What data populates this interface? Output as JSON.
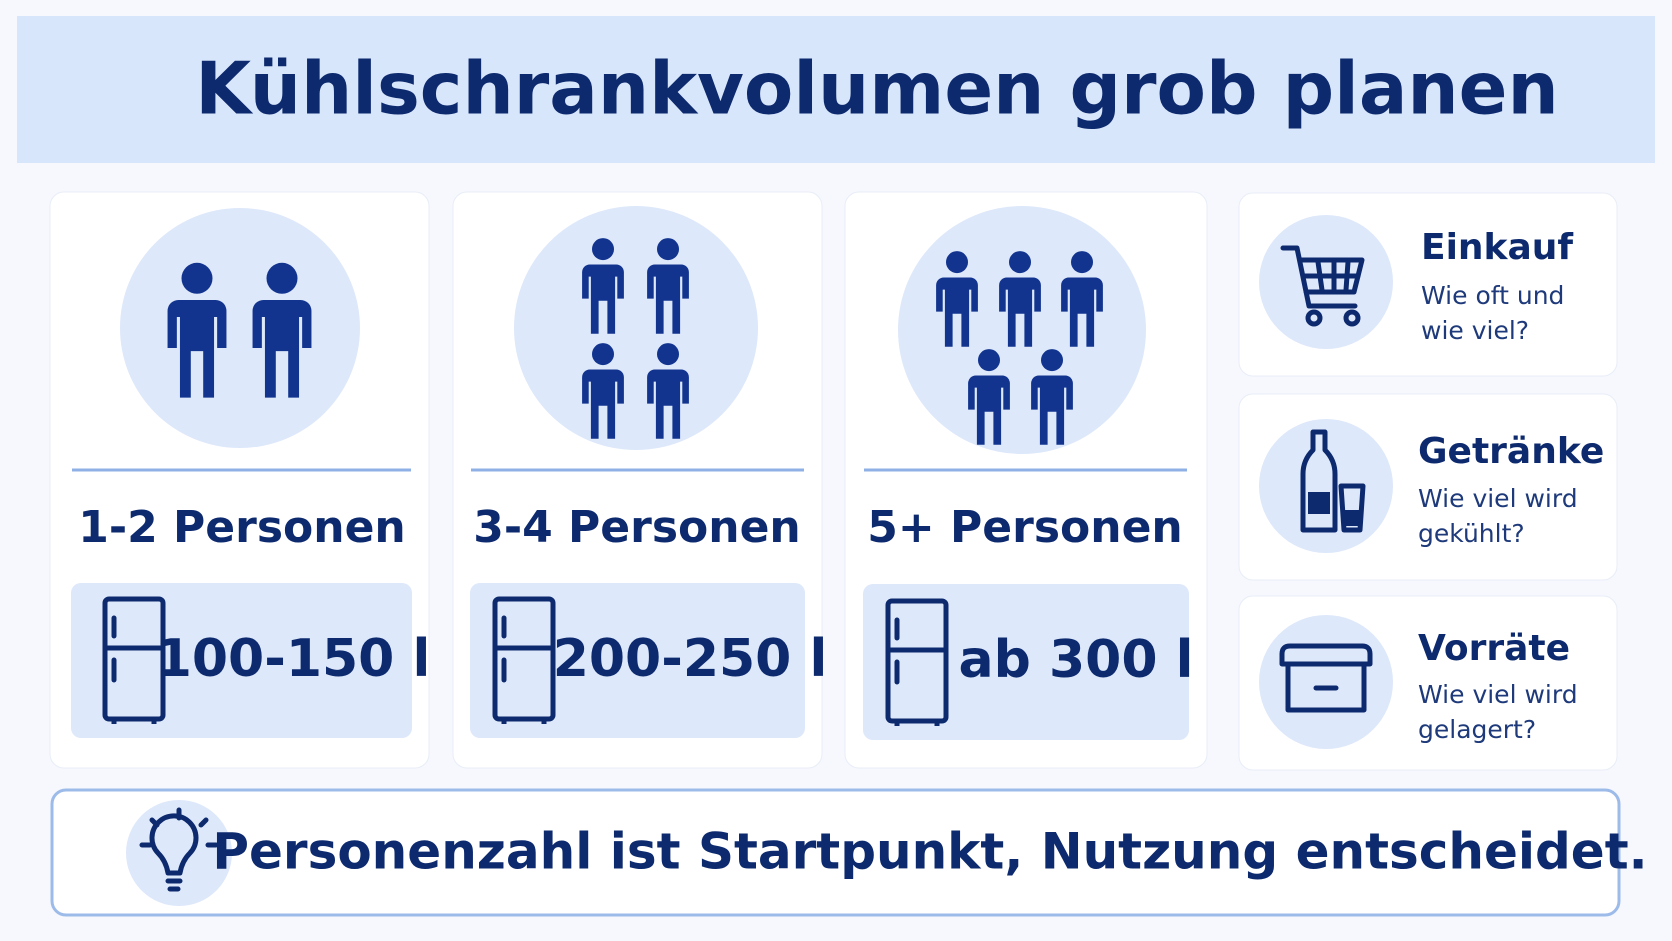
{
  "header": {
    "title": "Kühlschrankvolumen grob planen"
  },
  "cards": [
    {
      "label": "1-2 Personen",
      "volume": "100-150 l"
    },
    {
      "label": "3-4 Personen",
      "volume": "200-250 l"
    },
    {
      "label": "5+ Personen",
      "volume": "ab 300 l"
    }
  ],
  "factors": [
    {
      "title": "Einkauf",
      "lines": [
        "Wie oft und",
        "wie viel?"
      ]
    },
    {
      "title": "Getränke",
      "lines": [
        "Wie viel wird",
        "gekühlt?"
      ]
    },
    {
      "title": "Vorräte",
      "lines": [
        "Wie viel wird",
        "gelagert?"
      ]
    }
  ],
  "tip": "Personenzahl ist Startpunkt, Nutzung entscheidet."
}
